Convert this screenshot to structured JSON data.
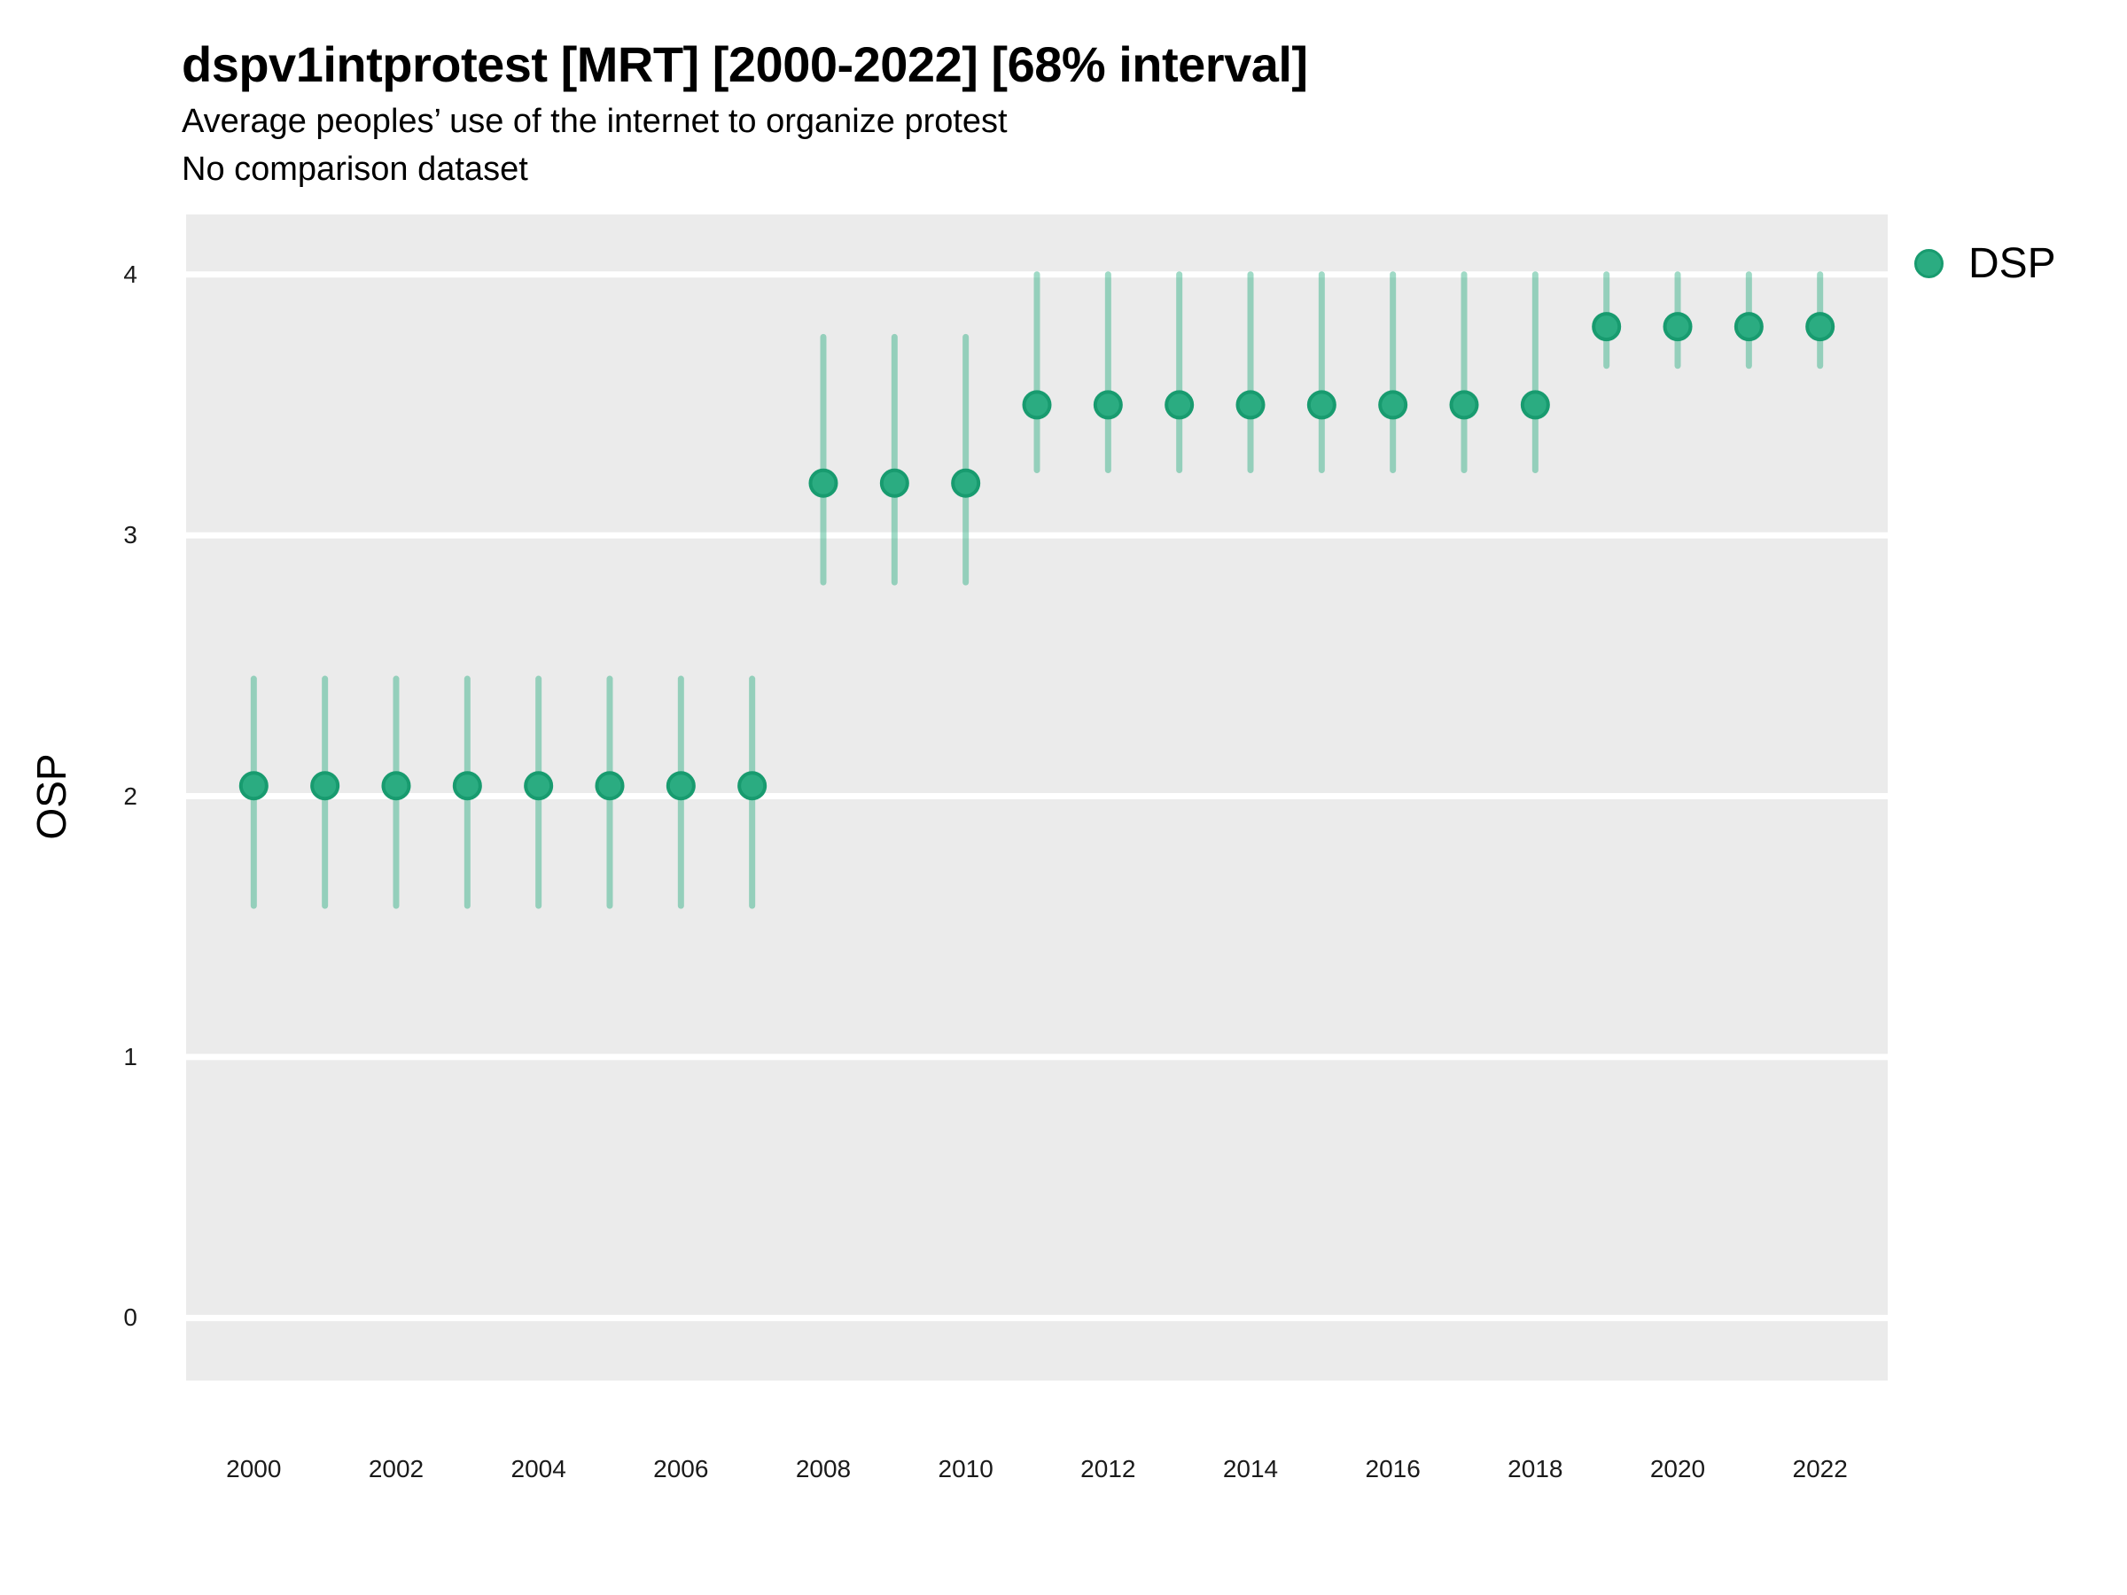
{
  "chart_data": {
    "type": "scatter",
    "subtype": "pointrange",
    "title": "dspv1intprotest [MRT] [2000-2022] [68% interval]",
    "subtitle": "Average peoples’ use of the internet to organize protest",
    "note": "No comparison dataset",
    "xlabel": "",
    "ylabel": "OSP",
    "interval": "68%",
    "xlim": [
      1999.05,
      2022.95
    ],
    "ylim": [
      -0.24,
      4.23
    ],
    "grid": "horizontal-major-white-on-gray",
    "y_ticks": [
      0,
      1,
      2,
      3,
      4
    ],
    "x_tick_years": [
      2000,
      2002,
      2004,
      2006,
      2008,
      2010,
      2012,
      2014,
      2016,
      2018,
      2020,
      2022
    ],
    "legend": {
      "position": "top-right",
      "entries": [
        {
          "label": "DSP",
          "marker": "circle"
        }
      ]
    },
    "x": [
      2000,
      2001,
      2002,
      2003,
      2004,
      2005,
      2006,
      2007,
      2008,
      2009,
      2010,
      2011,
      2012,
      2013,
      2014,
      2015,
      2016,
      2017,
      2018,
      2019,
      2020,
      2021,
      2022
    ],
    "series": [
      {
        "name": "DSP",
        "estimates": [
          2.04,
          2.04,
          2.04,
          2.04,
          2.04,
          2.04,
          2.04,
          2.04,
          3.2,
          3.2,
          3.2,
          3.5,
          3.5,
          3.5,
          3.5,
          3.5,
          3.5,
          3.5,
          3.5,
          3.8,
          3.8,
          3.8,
          3.8
        ],
        "lower": [
          1.58,
          1.58,
          1.58,
          1.58,
          1.58,
          1.58,
          1.58,
          1.58,
          2.82,
          2.82,
          2.82,
          3.25,
          3.25,
          3.25,
          3.25,
          3.25,
          3.25,
          3.25,
          3.25,
          3.65,
          3.65,
          3.65,
          3.65
        ],
        "upper": [
          2.45,
          2.45,
          2.45,
          2.45,
          2.45,
          2.45,
          2.45,
          2.45,
          3.76,
          3.76,
          3.76,
          4.0,
          4.0,
          4.0,
          4.0,
          4.0,
          4.0,
          4.0,
          4.0,
          4.0,
          4.0,
          4.0,
          4.0
        ]
      }
    ],
    "colors": {
      "point_fill": "#2BAC81",
      "point_stroke": "#189B6F",
      "interval_rgba": "rgba(43,172,129,0.45)",
      "panel_bg": "#EBEBEB",
      "gridline": "#FFFFFF",
      "text": "#000000"
    }
  }
}
